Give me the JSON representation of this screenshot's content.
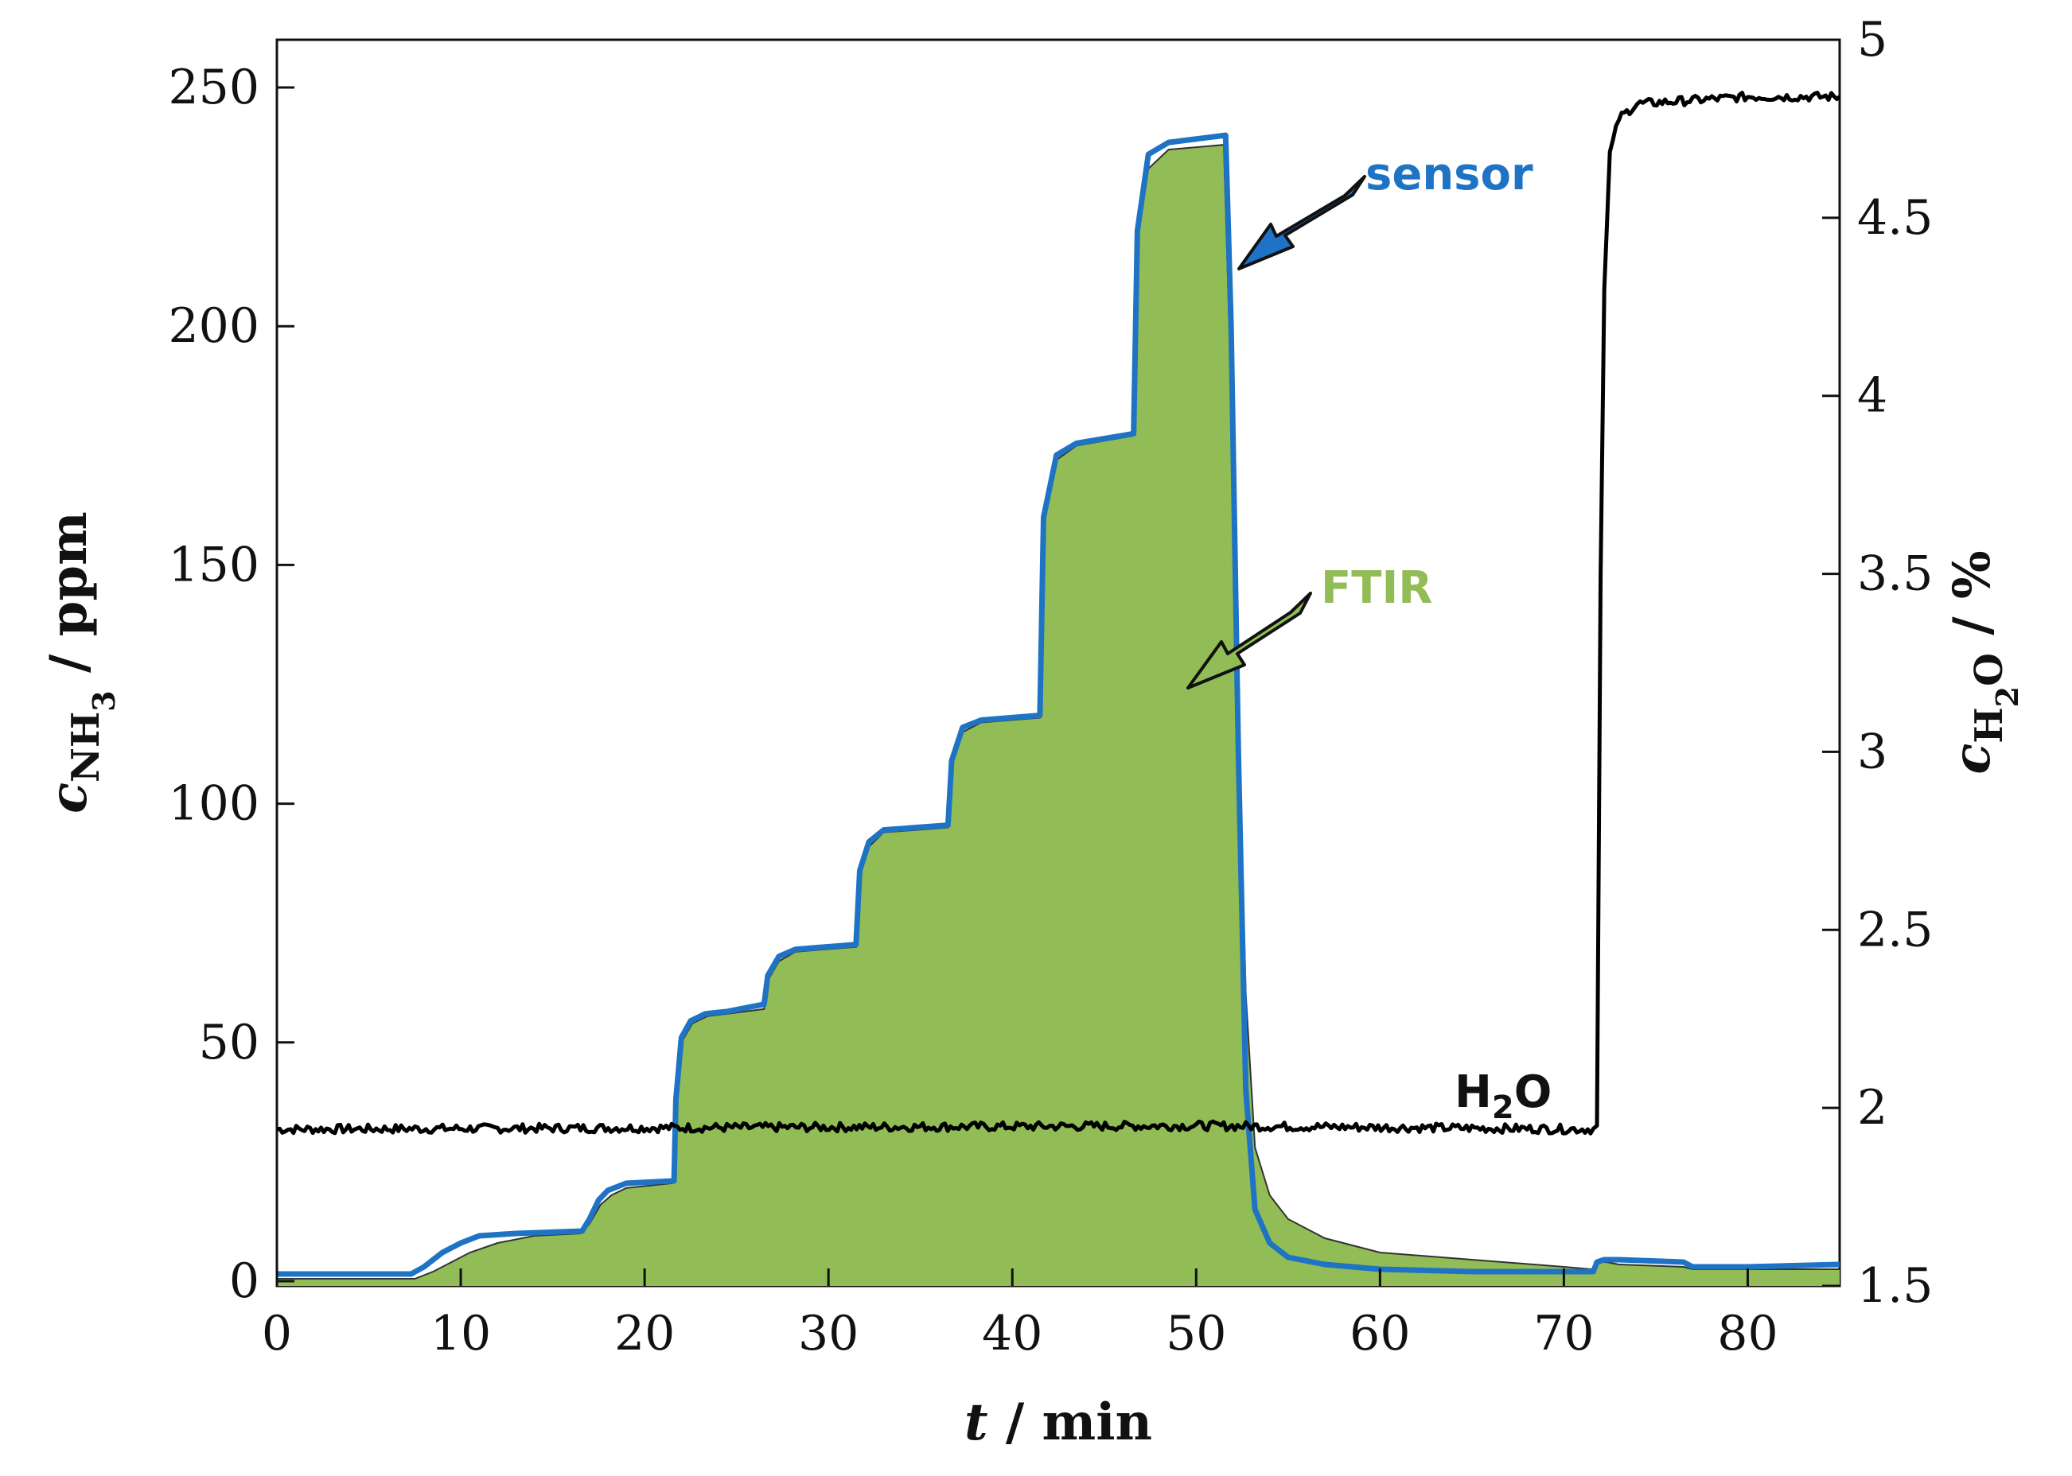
{
  "chart_data": {
    "type": "line",
    "title": "",
    "xlabel": {
      "var": "t",
      "rest": " / min"
    },
    "ylabel_left": {
      "var": "c",
      "sub": "NH",
      "subsub": "3",
      "rest": " / ppm"
    },
    "ylabel_right": {
      "var": "c",
      "sub": "H",
      "subsub": "2",
      "subtail": "O",
      "rest": " / %"
    },
    "xlim": [
      0,
      85
    ],
    "ylim_left": [
      -1,
      260
    ],
    "ylim_right": [
      1.5,
      5
    ],
    "xticks": [
      "0",
      "10",
      "20",
      "30",
      "40",
      "50",
      "60",
      "70",
      "80"
    ],
    "yticks_left": [
      "0",
      "50",
      "100",
      "150",
      "200",
      "250"
    ],
    "yticks_right": [
      "1.5",
      "2",
      "2.5",
      "3",
      "3.5",
      "4",
      "4.5",
      "5"
    ],
    "colors": {
      "ftir": "#92bc55",
      "sensor": "#1f73c4",
      "h2o": "#000000"
    },
    "series": [
      {
        "name": "FTIR",
        "axis": "left",
        "style": "area",
        "x": [
          0,
          7.5,
          8.5,
          9.5,
          10.5,
          12,
          14,
          16.5,
          17,
          17.6,
          18.2,
          19,
          21.5,
          21.6,
          22,
          22.6,
          23.4,
          24.5,
          26.5,
          26.7,
          27.3,
          28.2,
          31.5,
          31.7,
          32.2,
          33,
          36.5,
          36.7,
          37.3,
          38.3,
          41.5,
          41.7,
          42.4,
          43.5,
          46.5,
          46.7,
          47.4,
          48.5,
          51.5,
          51.8,
          52.2,
          52.7,
          53.2,
          54,
          55,
          57,
          60,
          65,
          70,
          71.5,
          71.9,
          72.3,
          73,
          76.5,
          77,
          80,
          85
        ],
        "y": [
          0.5,
          0.5,
          2,
          4,
          6,
          8,
          9.5,
          10,
          12,
          16,
          18,
          19.5,
          20.5,
          35,
          50,
          54,
          55.5,
          56,
          57,
          63,
          67,
          69,
          70,
          85,
          91,
          94,
          95,
          108,
          115,
          117,
          118,
          158,
          172,
          175,
          177,
          215,
          233,
          237,
          238,
          200,
          130,
          60,
          28,
          18,
          13,
          9,
          6,
          4.5,
          3,
          2.5,
          4,
          4,
          3.5,
          3,
          2.5,
          2.5,
          2.5
        ]
      },
      {
        "name": "sensor",
        "axis": "left",
        "style": "line",
        "x": [
          0,
          7.3,
          8,
          9,
          10,
          11,
          13,
          16.6,
          17,
          17.5,
          18,
          19,
          21.6,
          21.7,
          22,
          22.5,
          23.3,
          24.5,
          26.5,
          26.7,
          27.3,
          28.2,
          31.5,
          31.7,
          32.2,
          33,
          36.5,
          36.7,
          37.3,
          38.3,
          41.5,
          41.7,
          42.4,
          43.5,
          46.6,
          46.8,
          47.4,
          48.5,
          51.6,
          51.9,
          52.3,
          52.7,
          53.2,
          54,
          55,
          57,
          60,
          65,
          70,
          71.6,
          71.8,
          72.2,
          73,
          76.5,
          77,
          80,
          85
        ],
        "y": [
          1.5,
          1.5,
          3,
          6,
          8,
          9.5,
          10,
          10.5,
          13,
          17,
          19,
          20.5,
          21,
          38,
          51,
          54.5,
          56,
          56.5,
          58,
          64,
          68,
          69.5,
          70.5,
          86,
          92,
          94.5,
          95.5,
          109,
          116,
          117.5,
          118.5,
          160,
          173,
          175.5,
          177.5,
          220,
          236,
          238.5,
          240,
          200,
          110,
          40,
          15,
          8,
          5,
          3.5,
          2.5,
          2,
          2,
          2,
          4,
          4.5,
          4.5,
          4,
          3,
          3,
          3.5
        ]
      },
      {
        "name": "H2O",
        "axis": "right",
        "style": "line",
        "x": [
          0,
          50,
          71.6,
          71.8,
          72.0,
          72.2,
          72.5,
          73,
          74,
          80,
          85
        ],
        "y": [
          1.94,
          1.95,
          1.94,
          1.95,
          3.5,
          4.3,
          4.68,
          4.78,
          4.82,
          4.84,
          4.84
        ]
      }
    ],
    "annotations": [
      {
        "text": "sensor",
        "series": "sensor"
      },
      {
        "text": "FTIR",
        "series": "FTIR"
      },
      {
        "text": "H",
        "sub": "2",
        "tail": "O",
        "series": "H2O"
      }
    ]
  }
}
